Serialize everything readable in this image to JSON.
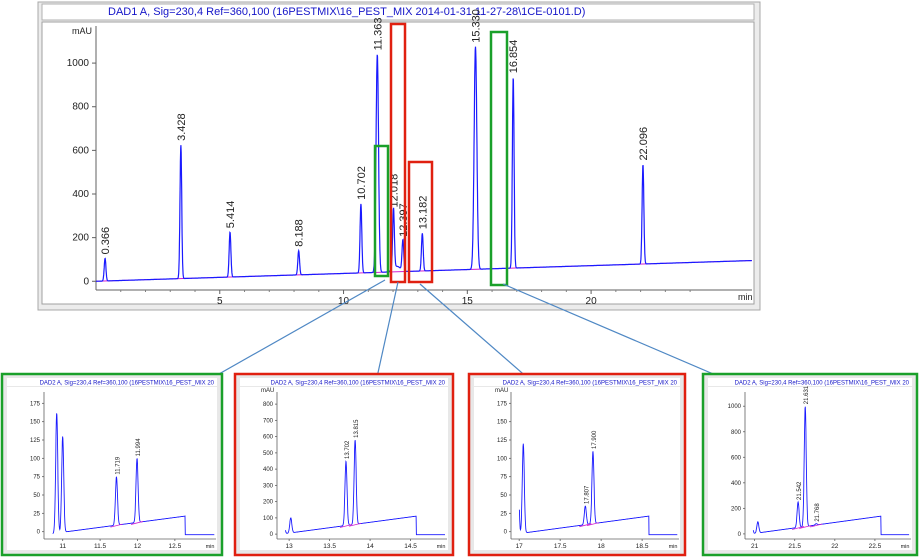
{
  "main": {
    "title": "DAD1 A, Sig=230,4 Ref=360,100 (16PESTMIX\\16_PEST_MIX 2014-01-31 11-27-28\\1CE-0101.D)"
  },
  "chart_data": [
    {
      "type": "line",
      "title": "DAD1 A, Sig=230,4 Ref=360,100 (16PESTMIX\\16_PEST_MIX 2014-01-31 11-27-28\\1CE-0101.D)",
      "ylabel": "mAU",
      "xlabel": "min",
      "xlim": [
        0,
        26.5
      ],
      "ylim": [
        -40,
        1170
      ],
      "xticks": [
        "5",
        "10",
        "15",
        "20"
      ],
      "yticks": [
        "0",
        "200",
        "400",
        "600",
        "800",
        "1000"
      ],
      "peaks": [
        {
          "label": "0.366",
          "x": 0.366,
          "y": 105
        },
        {
          "label": "3.428",
          "x": 3.428,
          "y": 625
        },
        {
          "label": "5.414",
          "x": 5.414,
          "y": 225
        },
        {
          "label": "8.188",
          "x": 8.188,
          "y": 140
        },
        {
          "label": "10.702",
          "x": 10.702,
          "y": 355
        },
        {
          "label": "11.363",
          "x": 11.363,
          "y": 1040
        },
        {
          "label": "12.018",
          "x": 12.018,
          "y": 320
        },
        {
          "label": "12.397",
          "x": 12.397,
          "y": 185
        },
        {
          "label": "13.182",
          "x": 13.182,
          "y": 220
        },
        {
          "label": "15.330",
          "x": 15.33,
          "y": 1075
        },
        {
          "label": "16.854",
          "x": 16.854,
          "y": 935
        },
        {
          "label": "22.096",
          "x": 22.096,
          "y": 535
        }
      ],
      "baseline": [
        [
          0,
          0
        ],
        [
          26.5,
          95
        ]
      ],
      "series_color": "#1a1aff"
    },
    {
      "type": "line",
      "title": "DAD2 A, Sig=230,4 Ref=360,100 (16PESTMIX\\16_PEST_MIX 20",
      "xlim": [
        10.75,
        13.05
      ],
      "ylim": [
        -10,
        185
      ],
      "xticks": [
        "11",
        "11.5",
        "12",
        "12.5",
        "min"
      ],
      "yticks": [
        "0",
        "25",
        "50",
        "75",
        "100",
        "125",
        "150",
        "175"
      ],
      "peaks": [
        {
          "label": "",
          "x": 10.92,
          "y": 162
        },
        {
          "label": "",
          "x": 11.0,
          "y": 130
        },
        {
          "label": "11.719",
          "x": 11.719,
          "y": 75
        },
        {
          "label": "11.994",
          "x": 11.994,
          "y": 100
        }
      ]
    },
    {
      "type": "line",
      "title": "DAD2 A, Sig=230,4 Ref=360,100 (16PESTMIX\\16_PEST_MIX 20",
      "ylabel": "mAU",
      "xlim": [
        12.85,
        14.95
      ],
      "ylim": [
        -30,
        850
      ],
      "xticks": [
        "13",
        "13.5",
        "14",
        "14.5",
        "min"
      ],
      "yticks": [
        "0",
        "100",
        "200",
        "300",
        "400",
        "500",
        "600",
        "700",
        "800"
      ],
      "peaks": [
        {
          "label": "",
          "x": 12.93,
          "y": 150
        },
        {
          "label": "",
          "x": 13.02,
          "y": 100
        },
        {
          "label": "13.702",
          "x": 13.702,
          "y": 450
        },
        {
          "label": "13.815",
          "x": 13.815,
          "y": 580
        }
      ]
    },
    {
      "type": "line",
      "title": "DAD2 A, Sig=230,4 Ref=360,100 (16PESTMIX\\16_PEST_MIX 20",
      "ylabel": "mAU",
      "xlim": [
        16.9,
        18.95
      ],
      "ylim": [
        -10,
        185
      ],
      "xticks": [
        "17",
        "17.5",
        "18",
        "18.5",
        "min"
      ],
      "yticks": [
        "0",
        "25",
        "50",
        "75",
        "100",
        "125",
        "150",
        "175"
      ],
      "peaks": [
        {
          "label": "",
          "x": 16.98,
          "y": 170
        },
        {
          "label": "",
          "x": 17.05,
          "y": 120
        },
        {
          "label": "17.807",
          "x": 17.807,
          "y": 35
        },
        {
          "label": "17.900",
          "x": 17.9,
          "y": 110
        }
      ]
    },
    {
      "type": "line",
      "title": "DAD2 A, Sig=230,4 Ref=360,100 (16PESTMIX\\16_PEST_MIX 20",
      "xlim": [
        20.88,
        22.95
      ],
      "ylim": [
        -40,
        1080
      ],
      "xticks": [
        "21",
        "21.5",
        "22",
        "22.5",
        "min"
      ],
      "yticks": [
        "0",
        "200",
        "400",
        "600",
        "800",
        "1000"
      ],
      "peaks": [
        {
          "label": "",
          "x": 20.96,
          "y": 160
        },
        {
          "label": "",
          "x": 21.04,
          "y": 95
        },
        {
          "label": "21.542",
          "x": 21.542,
          "y": 250
        },
        {
          "label": "21.631",
          "x": 21.631,
          "y": 1000
        },
        {
          "label": "21.768",
          "x": 21.768,
          "y": 80
        }
      ]
    }
  ],
  "colors": {
    "trace": "#1a1aff",
    "integration": "#d020d0",
    "title": "#1515c8",
    "green_box": "#1aa02a",
    "red_box": "#e02010",
    "arrow": "#4f88c4",
    "panel_bg": "#e8e8e8"
  }
}
